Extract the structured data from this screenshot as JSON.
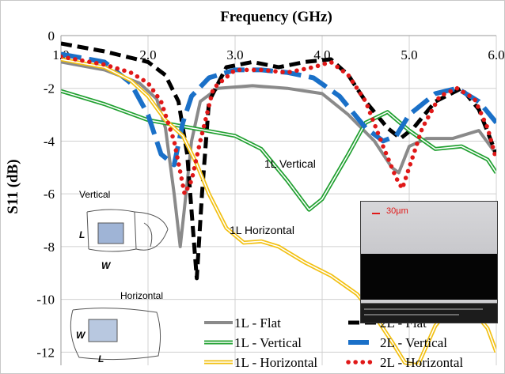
{
  "chart_data": {
    "type": "line",
    "title": "Frequency (GHz)",
    "ylabel": "S11 (dB)",
    "xlim": [
      1.0,
      6.0
    ],
    "ylim": [
      -12.5,
      0
    ],
    "x_ticks": [
      "1.0",
      "2.0",
      "3.0",
      "4.0",
      "5.0",
      "6.0"
    ],
    "y_ticks": [
      "0",
      "-2",
      "-4",
      "-6",
      "-8",
      "-10",
      "-12"
    ],
    "grid": true,
    "legend_position": "bottom-right",
    "series": [
      {
        "name": "1L - Flat",
        "color": "#8a8a8a",
        "style": "solid",
        "points": [
          [
            1.0,
            -1.0
          ],
          [
            1.5,
            -1.3
          ],
          [
            1.9,
            -1.8
          ],
          [
            2.1,
            -2.4
          ],
          [
            2.2,
            -3.5
          ],
          [
            2.3,
            -6.0
          ],
          [
            2.37,
            -8.0
          ],
          [
            2.42,
            -6.5
          ],
          [
            2.5,
            -4.0
          ],
          [
            2.6,
            -2.5
          ],
          [
            2.8,
            -2.0
          ],
          [
            3.2,
            -1.9
          ],
          [
            3.6,
            -2.0
          ],
          [
            4.0,
            -2.2
          ],
          [
            4.3,
            -3.0
          ],
          [
            4.6,
            -4.0
          ],
          [
            4.8,
            -5.0
          ],
          [
            4.88,
            -5.2
          ],
          [
            5.0,
            -4.2
          ],
          [
            5.2,
            -3.9
          ],
          [
            5.5,
            -3.9
          ],
          [
            5.8,
            -3.6
          ],
          [
            6.0,
            -4.5
          ]
        ]
      },
      {
        "name": "2L - Flat",
        "color": "#000000",
        "style": "dash",
        "points": [
          [
            1.0,
            -0.3
          ],
          [
            1.5,
            -0.6
          ],
          [
            2.0,
            -1.0
          ],
          [
            2.2,
            -1.5
          ],
          [
            2.35,
            -2.5
          ],
          [
            2.45,
            -4.5
          ],
          [
            2.52,
            -7.5
          ],
          [
            2.56,
            -9.2
          ],
          [
            2.62,
            -6.0
          ],
          [
            2.7,
            -2.5
          ],
          [
            2.9,
            -1.2
          ],
          [
            3.2,
            -1.0
          ],
          [
            3.5,
            -1.2
          ],
          [
            3.8,
            -1.0
          ],
          [
            4.1,
            -0.9
          ],
          [
            4.3,
            -1.5
          ],
          [
            4.5,
            -2.5
          ],
          [
            4.75,
            -3.5
          ],
          [
            4.9,
            -3.9
          ],
          [
            5.05,
            -3.5
          ],
          [
            5.3,
            -2.5
          ],
          [
            5.6,
            -2.0
          ],
          [
            5.8,
            -2.8
          ],
          [
            6.0,
            -4.5
          ]
        ]
      },
      {
        "name": "1L - Vertical",
        "color": "#20a030",
        "style": "double",
        "points": [
          [
            1.0,
            -2.1
          ],
          [
            1.5,
            -2.6
          ],
          [
            2.0,
            -3.2
          ],
          [
            2.5,
            -3.5
          ],
          [
            3.0,
            -3.8
          ],
          [
            3.3,
            -4.3
          ],
          [
            3.6,
            -5.5
          ],
          [
            3.85,
            -6.6
          ],
          [
            4.0,
            -6.2
          ],
          [
            4.3,
            -4.5
          ],
          [
            4.5,
            -3.3
          ],
          [
            4.75,
            -2.9
          ],
          [
            5.0,
            -3.6
          ],
          [
            5.3,
            -4.3
          ],
          [
            5.6,
            -4.2
          ],
          [
            5.9,
            -4.7
          ],
          [
            6.0,
            -5.2
          ]
        ]
      },
      {
        "name": "2L - Vertical",
        "color": "#1a70c8",
        "style": "longdash",
        "points": [
          [
            1.0,
            -0.7
          ],
          [
            1.5,
            -1.0
          ],
          [
            1.8,
            -1.8
          ],
          [
            2.0,
            -3.0
          ],
          [
            2.15,
            -4.5
          ],
          [
            2.3,
            -4.9
          ],
          [
            2.4,
            -3.3
          ],
          [
            2.5,
            -2.3
          ],
          [
            2.7,
            -1.6
          ],
          [
            3.0,
            -1.3
          ],
          [
            3.3,
            -1.3
          ],
          [
            3.6,
            -1.4
          ],
          [
            3.9,
            -1.6
          ],
          [
            4.2,
            -2.3
          ],
          [
            4.5,
            -3.5
          ],
          [
            4.7,
            -4.0
          ],
          [
            4.85,
            -3.8
          ],
          [
            5.0,
            -3.0
          ],
          [
            5.3,
            -2.2
          ],
          [
            5.55,
            -2.0
          ],
          [
            5.8,
            -2.5
          ],
          [
            6.0,
            -3.3
          ]
        ]
      },
      {
        "name": "1L - Horizontal",
        "color": "#f2c012",
        "style": "double",
        "points": [
          [
            1.0,
            -0.9
          ],
          [
            1.5,
            -1.2
          ],
          [
            1.8,
            -1.7
          ],
          [
            2.0,
            -2.3
          ],
          [
            2.2,
            -3.2
          ],
          [
            2.4,
            -3.8
          ],
          [
            2.55,
            -4.8
          ],
          [
            2.7,
            -6.0
          ],
          [
            2.9,
            -7.3
          ],
          [
            3.1,
            -7.85
          ],
          [
            3.3,
            -7.8
          ],
          [
            3.5,
            -8.0
          ],
          [
            3.8,
            -8.6
          ],
          [
            4.1,
            -9.1
          ],
          [
            4.4,
            -9.8
          ],
          [
            4.6,
            -10.6
          ],
          [
            4.8,
            -11.6
          ],
          [
            4.95,
            -12.4
          ],
          [
            5.1,
            -12.5
          ],
          [
            5.3,
            -11.0
          ],
          [
            5.5,
            -10.2
          ],
          [
            5.7,
            -10.3
          ],
          [
            5.9,
            -11.1
          ],
          [
            6.0,
            -12.0
          ]
        ]
      },
      {
        "name": "2L - Horizontal",
        "color": "#e01818",
        "style": "dot",
        "points": [
          [
            1.0,
            -0.8
          ],
          [
            1.5,
            -1.1
          ],
          [
            1.8,
            -1.4
          ],
          [
            2.0,
            -1.8
          ],
          [
            2.15,
            -2.5
          ],
          [
            2.3,
            -4.0
          ],
          [
            2.42,
            -6.0
          ],
          [
            2.5,
            -5.5
          ],
          [
            2.6,
            -4.0
          ],
          [
            2.75,
            -2.0
          ],
          [
            3.0,
            -1.3
          ],
          [
            3.3,
            -1.3
          ],
          [
            3.6,
            -1.4
          ],
          [
            3.9,
            -1.2
          ],
          [
            4.1,
            -1.0
          ],
          [
            4.3,
            -1.5
          ],
          [
            4.5,
            -2.5
          ],
          [
            4.7,
            -4.2
          ],
          [
            4.85,
            -5.4
          ],
          [
            4.92,
            -5.8
          ],
          [
            5.0,
            -5.0
          ],
          [
            5.15,
            -3.5
          ],
          [
            5.35,
            -2.3
          ],
          [
            5.55,
            -2.0
          ],
          [
            5.75,
            -2.4
          ],
          [
            5.9,
            -3.5
          ],
          [
            6.0,
            -4.7
          ]
        ]
      }
    ],
    "annotations": [
      "1L Vertical",
      "1L Horizontal"
    ],
    "inset_labels": {
      "vertical": "Vertical",
      "horizontal": "Horizontal",
      "length": "L",
      "width": "W"
    },
    "sem_scale": "30µm"
  }
}
